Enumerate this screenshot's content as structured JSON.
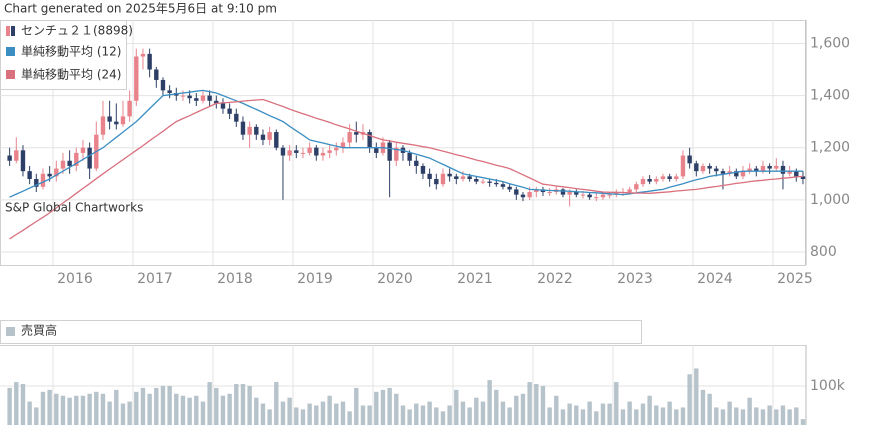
{
  "chart_data": [
    {
      "type": "candlestick",
      "title": "Chart generated on 2025年5月6日 at 9:10 pm",
      "annotation": "S&P Global Chartworks",
      "xlim": [
        0,
        120
      ],
      "xticks": [
        {
          "value": 7,
          "label": "2016"
        },
        {
          "value": 19,
          "label": "2017"
        },
        {
          "value": 31,
          "label": "2018"
        },
        {
          "value": 43,
          "label": "2019"
        },
        {
          "value": 55,
          "label": "2020"
        },
        {
          "value": 67,
          "label": "2021"
        },
        {
          "value": 79,
          "label": "2022"
        },
        {
          "value": 91,
          "label": "2023"
        },
        {
          "value": 103,
          "label": "2024"
        },
        {
          "value": 115,
          "label": "2025"
        }
      ],
      "ylim": [
        750,
        1690
      ],
      "yticks": [
        800,
        {
          "value": 1000,
          "label": "1,000"
        },
        {
          "value": 1200,
          "label": "1,200"
        },
        {
          "value": 1400,
          "label": "1,400"
        },
        {
          "value": 1600,
          "label": "1,600"
        }
      ],
      "grid": true,
      "candles": {
        "name": "センチュ２１(8898)",
        "up_color": "#e8838c",
        "down_color": "#2d3f66",
        "open": [
          1170,
          1150,
          1190,
          1110,
          1080,
          1050,
          1100,
          1090,
          1120,
          1150,
          1130,
          1180,
          1200,
          1120,
          1250,
          1320,
          1300,
          1290,
          1320,
          1380,
          1550,
          1560,
          1500,
          1460,
          1420,
          1410,
          1400,
          1400,
          1390,
          1380,
          1400,
          1380,
          1370,
          1350,
          1330,
          1300,
          1250,
          1280,
          1250,
          1230,
          1260,
          1200,
          1170,
          1190,
          1180,
          1180,
          1200,
          1170,
          1180,
          1190,
          1200,
          1220,
          1260,
          1250,
          1260,
          1200,
          1180,
          1220,
          1150,
          1200,
          1180,
          1150,
          1130,
          1100,
          1080,
          1060,
          1100,
          1090,
          1080,
          1090,
          1080,
          1070,
          1070,
          1065,
          1060,
          1050,
          1040,
          1020,
          1010,
          1030,
          1040,
          1030,
          1030,
          1040,
          1020,
          1030,
          1020,
          1020,
          1010,
          1010,
          1020,
          1020,
          1030,
          1030,
          1040,
          1060,
          1080,
          1070,
          1080,
          1090,
          1080,
          1090,
          1170,
          1140,
          1110,
          1130,
          1120,
          1110,
          1100,
          1110,
          1090,
          1110,
          1120,
          1110,
          1130,
          1120,
          1130,
          1100,
          1110,
          1090
        ],
        "high": [
          1200,
          1240,
          1210,
          1130,
          1100,
          1120,
          1130,
          1150,
          1180,
          1190,
          1200,
          1230,
          1220,
          1300,
          1380,
          1380,
          1370,
          1380,
          1420,
          1580,
          1580,
          1580,
          1510,
          1470,
          1440,
          1430,
          1420,
          1420,
          1410,
          1420,
          1420,
          1400,
          1390,
          1370,
          1350,
          1320,
          1300,
          1290,
          1270,
          1280,
          1270,
          1210,
          1210,
          1210,
          1200,
          1220,
          1210,
          1200,
          1210,
          1220,
          1240,
          1290,
          1300,
          1290,
          1270,
          1220,
          1240,
          1230,
          1220,
          1210,
          1190,
          1170,
          1140,
          1120,
          1100,
          1120,
          1120,
          1100,
          1110,
          1100,
          1090,
          1080,
          1080,
          1080,
          1070,
          1060,
          1050,
          1030,
          1050,
          1050,
          1050,
          1045,
          1055,
          1045,
          1040,
          1040,
          1035,
          1030,
          1025,
          1030,
          1030,
          1040,
          1045,
          1050,
          1070,
          1090,
          1095,
          1090,
          1100,
          1100,
          1100,
          1190,
          1200,
          1150,
          1140,
          1140,
          1130,
          1120,
          1130,
          1120,
          1130,
          1140,
          1130,
          1150,
          1140,
          1160,
          1150,
          1130,
          1120,
          1110
        ],
        "low": [
          1130,
          1140,
          1090,
          1060,
          1030,
          1040,
          1070,
          1070,
          1100,
          1100,
          1110,
          1150,
          1080,
          1110,
          1230,
          1270,
          1270,
          1280,
          1300,
          1360,
          1500,
          1470,
          1430,
          1400,
          1390,
          1380,
          1380,
          1370,
          1360,
          1370,
          1360,
          1350,
          1330,
          1310,
          1280,
          1230,
          1200,
          1230,
          1210,
          1210,
          1190,
          1000,
          1150,
          1160,
          1160,
          1170,
          1150,
          1150,
          1160,
          1170,
          1180,
          1200,
          1220,
          1230,
          1180,
          1160,
          1170,
          1010,
          1130,
          1150,
          1130,
          1100,
          1080,
          1050,
          1040,
          1050,
          1070,
          1060,
          1070,
          1070,
          1060,
          1060,
          1050,
          1050,
          1040,
          1030,
          1000,
          995,
          1000,
          1010,
          1015,
          1015,
          1020,
          1010,
          975,
          1010,
          1005,
          1000,
          995,
          1000,
          1005,
          1010,
          1015,
          1020,
          1030,
          1050,
          1060,
          1060,
          1070,
          1070,
          1070,
          1080,
          1120,
          1090,
          1100,
          1100,
          1090,
          1040,
          1090,
          1080,
          1080,
          1100,
          1090,
          1100,
          1100,
          1110,
          1040,
          1090,
          1070,
          1060
        ],
        "close": [
          1150,
          1190,
          1110,
          1080,
          1050,
          1100,
          1090,
          1120,
          1150,
          1130,
          1180,
          1200,
          1120,
          1250,
          1320,
          1300,
          1290,
          1320,
          1380,
          1550,
          1560,
          1500,
          1460,
          1420,
          1410,
          1400,
          1400,
          1390,
          1380,
          1400,
          1380,
          1370,
          1350,
          1330,
          1300,
          1250,
          1280,
          1250,
          1230,
          1260,
          1200,
          1170,
          1190,
          1180,
          1180,
          1200,
          1170,
          1180,
          1190,
          1200,
          1220,
          1260,
          1250,
          1260,
          1200,
          1180,
          1220,
          1150,
          1200,
          1180,
          1150,
          1130,
          1100,
          1080,
          1060,
          1100,
          1090,
          1080,
          1090,
          1080,
          1070,
          1070,
          1065,
          1060,
          1050,
          1040,
          1020,
          1010,
          1030,
          1040,
          1030,
          1030,
          1040,
          1020,
          1030,
          1020,
          1020,
          1010,
          1010,
          1020,
          1020,
          1030,
          1030,
          1040,
          1060,
          1080,
          1070,
          1080,
          1090,
          1080,
          1090,
          1170,
          1140,
          1110,
          1130,
          1120,
          1110,
          1100,
          1110,
          1090,
          1110,
          1120,
          1110,
          1130,
          1120,
          1130,
          1100,
          1110,
          1090,
          1080
        ]
      },
      "series": [
        {
          "name": "単純移動平均 (12)",
          "color": "#3b8ec2",
          "values": [
            1010,
            1022,
            1033,
            1045,
            1057,
            1068,
            1080,
            1095,
            1110,
            1125,
            1140,
            1155,
            1170,
            1185,
            1200,
            1220,
            1240,
            1260,
            1280,
            1300,
            1325,
            1350,
            1375,
            1400,
            1403,
            1407,
            1410,
            1413,
            1417,
            1420,
            1415,
            1410,
            1400,
            1390,
            1380,
            1370,
            1358,
            1347,
            1335,
            1323,
            1312,
            1300,
            1282,
            1265,
            1248,
            1230,
            1224,
            1218,
            1212,
            1206,
            1200,
            1200,
            1200,
            1200,
            1200,
            1200,
            1200,
            1197,
            1193,
            1190,
            1182,
            1175,
            1168,
            1160,
            1148,
            1136,
            1124,
            1112,
            1100,
            1095,
            1090,
            1085,
            1080,
            1075,
            1070,
            1062,
            1055,
            1048,
            1040,
            1039,
            1037,
            1036,
            1035,
            1034,
            1033,
            1031,
            1030,
            1028,
            1027,
            1025,
            1023,
            1022,
            1020,
            1023,
            1027,
            1030,
            1033,
            1037,
            1040,
            1048,
            1055,
            1062,
            1070,
            1077,
            1083,
            1090,
            1094,
            1098,
            1102,
            1106,
            1110,
            1110,
            1110,
            1110,
            1110,
            1110,
            1110,
            1110,
            1110,
            1110
          ]
        },
        {
          "name": "単純移動平均 (24)",
          "color": "#d9707e",
          "values": [
            850,
            867,
            883,
            900,
            917,
            933,
            950,
            969,
            988,
            1006,
            1025,
            1044,
            1062,
            1081,
            1100,
            1118,
            1136,
            1154,
            1172,
            1190,
            1208,
            1227,
            1245,
            1263,
            1282,
            1300,
            1312,
            1323,
            1335,
            1347,
            1358,
            1370,
            1372,
            1374,
            1376,
            1379,
            1381,
            1383,
            1385,
            1376,
            1367,
            1358,
            1348,
            1339,
            1330,
            1322,
            1313,
            1305,
            1297,
            1288,
            1280,
            1272,
            1263,
            1255,
            1247,
            1238,
            1230,
            1226,
            1221,
            1217,
            1213,
            1209,
            1204,
            1200,
            1193,
            1187,
            1180,
            1173,
            1167,
            1160,
            1153,
            1147,
            1140,
            1133,
            1127,
            1120,
            1108,
            1096,
            1084,
            1072,
            1060,
            1057,
            1053,
            1050,
            1047,
            1043,
            1040,
            1037,
            1033,
            1030,
            1029,
            1029,
            1028,
            1027,
            1026,
            1026,
            1025,
            1027,
            1029,
            1031,
            1034,
            1036,
            1038,
            1040,
            1044,
            1048,
            1051,
            1055,
            1059,
            1063,
            1066,
            1070,
            1073,
            1075,
            1078,
            1080,
            1083,
            1085,
            1088,
            1090
          ]
        }
      ]
    },
    {
      "type": "bar",
      "ylim": [
        0,
        205000
      ],
      "yticks": [
        {
          "value": 100000,
          "label": "100k"
        }
      ],
      "series": [
        {
          "name": "売買高",
          "color": "#b7c3cb",
          "values": [
            95000,
            110000,
            105000,
            60000,
            45000,
            85000,
            90000,
            80000,
            75000,
            70000,
            75000,
            75000,
            80000,
            85000,
            80000,
            60000,
            90000,
            55000,
            60000,
            85000,
            95000,
            80000,
            95000,
            100000,
            100000,
            80000,
            75000,
            70000,
            75000,
            60000,
            110000,
            95000,
            75000,
            80000,
            105000,
            105000,
            100000,
            70000,
            55000,
            40000,
            110000,
            60000,
            70000,
            45000,
            40000,
            55000,
            50000,
            60000,
            75000,
            55000,
            60000,
            35000,
            95000,
            50000,
            50000,
            85000,
            90000,
            95000,
            80000,
            50000,
            40000,
            55000,
            50000,
            60000,
            45000,
            35000,
            50000,
            90000,
            60000,
            45000,
            70000,
            60000,
            115000,
            90000,
            60000,
            45000,
            75000,
            80000,
            110000,
            105000,
            100000,
            45000,
            75000,
            40000,
            55000,
            50000,
            40000,
            60000,
            35000,
            55000,
            55000,
            110000,
            40000,
            60000,
            40000,
            55000,
            75000,
            50000,
            45000,
            60000,
            40000,
            45000,
            130000,
            145000,
            90000,
            80000,
            45000,
            40000,
            60000,
            45000,
            40000,
            70000,
            45000,
            40000,
            50000,
            40000,
            50000,
            40000,
            45000,
            15000
          ]
        }
      ]
    }
  ]
}
